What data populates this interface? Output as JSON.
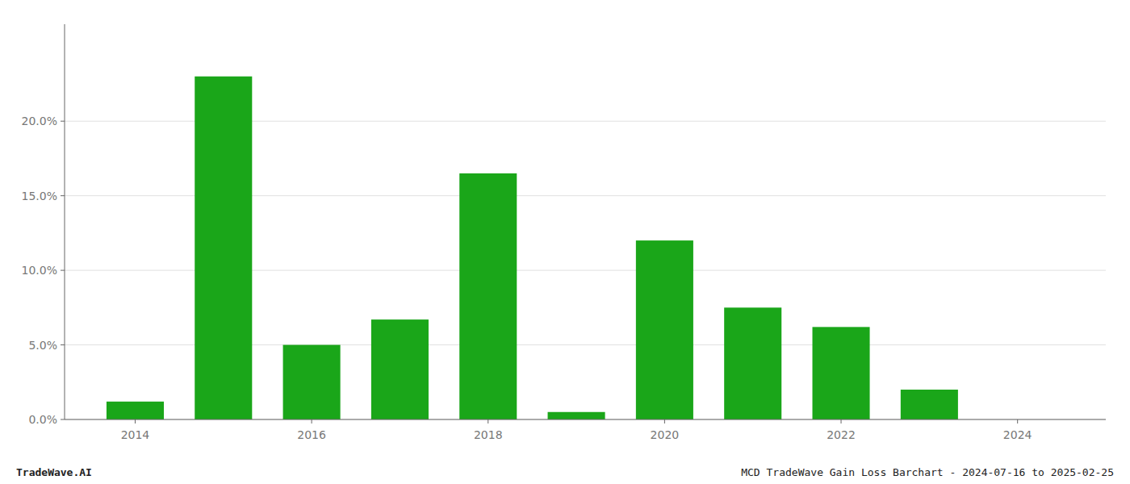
{
  "chart_data": {
    "type": "bar",
    "x": [
      2014,
      2015,
      2016,
      2017,
      2018,
      2019,
      2020,
      2021,
      2022,
      2023,
      2024
    ],
    "values": [
      0.012,
      0.23,
      0.05,
      0.067,
      0.165,
      0.005,
      0.12,
      0.075,
      0.062,
      0.02,
      0.0
    ],
    "color": "#1aa619",
    "xlim": [
      2013.2,
      2025.0
    ],
    "xticks": [
      2014,
      2016,
      2018,
      2020,
      2022,
      2024
    ],
    "ylim": [
      0,
      0.265
    ],
    "yticks": [
      {
        "value": 0.0,
        "label": "0.0%"
      },
      {
        "value": 0.05,
        "label": "5.0%"
      },
      {
        "value": 0.1,
        "label": "10.0%"
      },
      {
        "value": 0.15,
        "label": "15.0%"
      },
      {
        "value": 0.2,
        "label": "20.0%"
      }
    ],
    "grid": true,
    "annotations": [
      "TradeWave.AI",
      "MCD TradeWave Gain Loss Barchart - 2024-07-16 to 2025-02-25"
    ]
  }
}
